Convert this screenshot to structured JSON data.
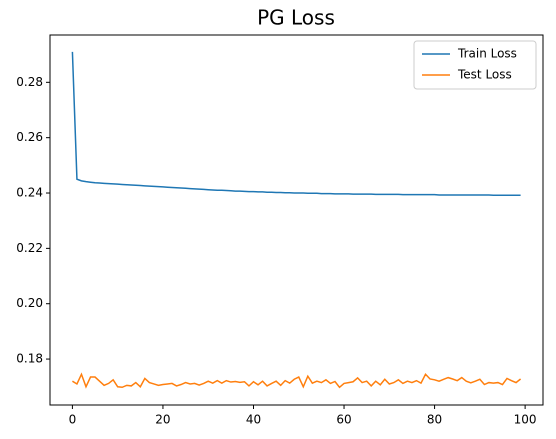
{
  "chart_data": {
    "type": "line",
    "title": "PG Loss",
    "x": [
      0,
      1,
      2,
      3,
      4,
      5,
      6,
      7,
      8,
      9,
      10,
      11,
      12,
      13,
      14,
      15,
      16,
      17,
      18,
      19,
      20,
      21,
      22,
      23,
      24,
      25,
      26,
      27,
      28,
      29,
      30,
      31,
      32,
      33,
      34,
      35,
      36,
      37,
      38,
      39,
      40,
      41,
      42,
      43,
      44,
      45,
      46,
      47,
      48,
      49,
      50,
      51,
      52,
      53,
      54,
      55,
      56,
      57,
      58,
      59,
      60,
      61,
      62,
      63,
      64,
      65,
      66,
      67,
      68,
      69,
      70,
      71,
      72,
      73,
      74,
      75,
      76,
      77,
      78,
      79,
      80,
      81,
      82,
      83,
      84,
      85,
      86,
      87,
      88,
      89,
      90,
      91,
      92,
      93,
      94,
      95,
      96,
      97,
      98,
      99
    ],
    "series": [
      {
        "name": "Train Loss",
        "color": "#1f77b4",
        "values": [
          0.291,
          0.245,
          0.2444,
          0.2441,
          0.2439,
          0.2437,
          0.2436,
          0.2435,
          0.2434,
          0.2433,
          0.2432,
          0.2431,
          0.243,
          0.2429,
          0.2428,
          0.2427,
          0.2426,
          0.2425,
          0.2424,
          0.2423,
          0.2422,
          0.2421,
          0.242,
          0.2419,
          0.2418,
          0.2417,
          0.2416,
          0.2415,
          0.2414,
          0.2413,
          0.2412,
          0.2411,
          0.241,
          0.241,
          0.2409,
          0.2408,
          0.2407,
          0.2407,
          0.2406,
          0.2405,
          0.2405,
          0.2404,
          0.2404,
          0.2403,
          0.2403,
          0.2402,
          0.2402,
          0.2401,
          0.2401,
          0.24,
          0.24,
          0.24,
          0.2399,
          0.2399,
          0.2399,
          0.2398,
          0.2398,
          0.2398,
          0.2397,
          0.2397,
          0.2397,
          0.2397,
          0.2396,
          0.2396,
          0.2396,
          0.2396,
          0.2396,
          0.2395,
          0.2395,
          0.2395,
          0.2395,
          0.2395,
          0.2395,
          0.2394,
          0.2394,
          0.2394,
          0.2394,
          0.2394,
          0.2394,
          0.2394,
          0.2394,
          0.2393,
          0.2393,
          0.2393,
          0.2393,
          0.2393,
          0.2393,
          0.2393,
          0.2393,
          0.2393,
          0.2393,
          0.2393,
          0.2393,
          0.2392,
          0.2392,
          0.2392,
          0.2392,
          0.2392,
          0.2392,
          0.2392
        ]
      },
      {
        "name": "Test Loss",
        "color": "#ff7f0e",
        "values": [
          0.172,
          0.171,
          0.1745,
          0.17,
          0.1735,
          0.1735,
          0.172,
          0.1705,
          0.1712,
          0.1725,
          0.17,
          0.1698,
          0.1705,
          0.1703,
          0.1715,
          0.17,
          0.173,
          0.1715,
          0.171,
          0.1705,
          0.1708,
          0.171,
          0.1712,
          0.1703,
          0.1708,
          0.1715,
          0.171,
          0.1712,
          0.1706,
          0.1712,
          0.172,
          0.1713,
          0.1722,
          0.1713,
          0.1722,
          0.1717,
          0.1719,
          0.1716,
          0.1718,
          0.1703,
          0.1718,
          0.1707,
          0.172,
          0.1703,
          0.1712,
          0.172,
          0.1705,
          0.1722,
          0.1713,
          0.1727,
          0.1735,
          0.17,
          0.1738,
          0.1713,
          0.172,
          0.1715,
          0.1725,
          0.1712,
          0.1719,
          0.1698,
          0.1712,
          0.1715,
          0.1718,
          0.1732,
          0.1715,
          0.172,
          0.1703,
          0.172,
          0.1707,
          0.1727,
          0.171,
          0.1715,
          0.1725,
          0.1712,
          0.172,
          0.1715,
          0.1722,
          0.1713,
          0.1745,
          0.1728,
          0.1725,
          0.172,
          0.1727,
          0.1733,
          0.1728,
          0.1722,
          0.1733,
          0.172,
          0.1714,
          0.172,
          0.1727,
          0.1708,
          0.1715,
          0.1713,
          0.1715,
          0.1708,
          0.173,
          0.1722,
          0.1715,
          0.1728
        ]
      }
    ],
    "xlim": [
      -4.95,
      103.95
    ],
    "xticks": [
      0,
      20,
      40,
      60,
      80,
      100
    ],
    "ylim": [
      0.1634,
      0.2971
    ],
    "yticks": [
      0.18,
      {
        "value": 0.2,
        "label": "0.20"
      },
      0.22,
      0.24,
      0.26,
      0.28
    ],
    "legend": "upper right"
  }
}
